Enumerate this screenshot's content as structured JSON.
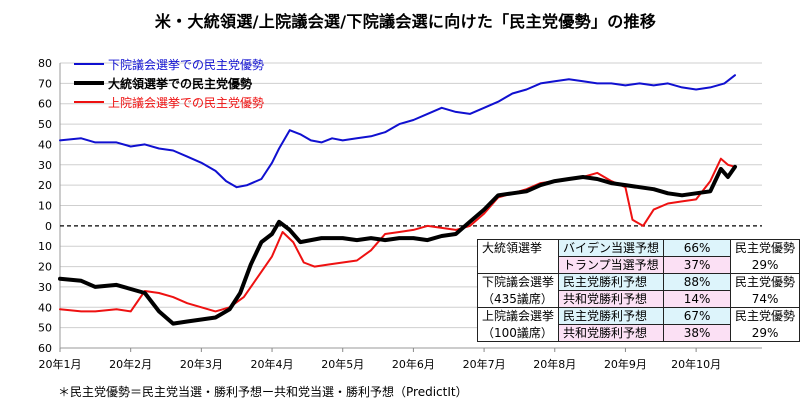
{
  "title": "米・大統領選/上院議会選/下院議会選に向けた「民主党優勢」の推移",
  "footnote": "＊民主党優勢＝民主党当選・勝利予想ー共和党当選・勝利予想（PredictIt）",
  "colors": {
    "house": "#1010d0",
    "president": "#000000",
    "senate": "#ee1111",
    "grid": "#cfcfcf"
  },
  "chart_data": {
    "type": "line",
    "title": "米・大統領選/上院議会選/下院議会選に向けた「民主党優勢」の推移",
    "xlabel": "",
    "ylabel": "",
    "x_tick_labels": [
      "20年1月",
      "20年2月",
      "20年3月",
      "20年4月",
      "20年5月",
      "20年6月",
      "20年7月",
      "20年8月",
      "20年9月",
      "20年10月"
    ],
    "y_tick_labels": [
      "80",
      "70",
      "60",
      "50",
      "40",
      "30",
      "20",
      "10",
      "0",
      "10",
      "20",
      "30",
      "40",
      "50",
      "60"
    ],
    "y_ticks": [
      80,
      70,
      60,
      50,
      40,
      30,
      20,
      10,
      0,
      -10,
      -20,
      -30,
      -40,
      -50,
      -60
    ],
    "ylim": [
      -60,
      80
    ],
    "x_unit": "months since 20年1月",
    "xlim": [
      0,
      9.55
    ],
    "grid": true,
    "legend_position": "top-left",
    "series": [
      {
        "name": "下院議会選挙での民主党優勢",
        "key": "house",
        "points": [
          [
            0,
            42
          ],
          [
            0.3,
            43
          ],
          [
            0.5,
            41
          ],
          [
            0.8,
            41
          ],
          [
            1.0,
            39
          ],
          [
            1.2,
            40
          ],
          [
            1.4,
            38
          ],
          [
            1.6,
            37
          ],
          [
            1.8,
            34
          ],
          [
            2.0,
            31
          ],
          [
            2.2,
            27
          ],
          [
            2.35,
            22
          ],
          [
            2.5,
            19
          ],
          [
            2.65,
            20
          ],
          [
            2.85,
            23
          ],
          [
            3.0,
            31
          ],
          [
            3.1,
            38
          ],
          [
            3.25,
            47
          ],
          [
            3.4,
            45
          ],
          [
            3.55,
            42
          ],
          [
            3.7,
            41
          ],
          [
            3.85,
            43
          ],
          [
            4.0,
            42
          ],
          [
            4.2,
            43
          ],
          [
            4.4,
            44
          ],
          [
            4.6,
            46
          ],
          [
            4.8,
            50
          ],
          [
            5.0,
            52
          ],
          [
            5.2,
            55
          ],
          [
            5.4,
            58
          ],
          [
            5.6,
            56
          ],
          [
            5.8,
            55
          ],
          [
            6.0,
            58
          ],
          [
            6.2,
            61
          ],
          [
            6.4,
            65
          ],
          [
            6.6,
            67
          ],
          [
            6.8,
            70
          ],
          [
            7.0,
            71
          ],
          [
            7.2,
            72
          ],
          [
            7.4,
            71
          ],
          [
            7.6,
            70
          ],
          [
            7.8,
            70
          ],
          [
            8.0,
            69
          ],
          [
            8.2,
            70
          ],
          [
            8.4,
            69
          ],
          [
            8.6,
            70
          ],
          [
            8.8,
            68
          ],
          [
            9.0,
            67
          ],
          [
            9.2,
            68
          ],
          [
            9.4,
            70
          ],
          [
            9.55,
            74
          ]
        ]
      },
      {
        "name": "大統領選挙での民主党優勢",
        "key": "president",
        "points": [
          [
            0,
            -26
          ],
          [
            0.3,
            -27
          ],
          [
            0.5,
            -30
          ],
          [
            0.8,
            -29
          ],
          [
            1.0,
            -31
          ],
          [
            1.2,
            -33
          ],
          [
            1.4,
            -42
          ],
          [
            1.6,
            -48
          ],
          [
            1.8,
            -47
          ],
          [
            2.0,
            -46
          ],
          [
            2.2,
            -45
          ],
          [
            2.4,
            -41
          ],
          [
            2.55,
            -33
          ],
          [
            2.7,
            -19
          ],
          [
            2.85,
            -8
          ],
          [
            3.0,
            -4
          ],
          [
            3.1,
            2
          ],
          [
            3.25,
            -2
          ],
          [
            3.4,
            -8
          ],
          [
            3.55,
            -7
          ],
          [
            3.7,
            -6
          ],
          [
            3.85,
            -6
          ],
          [
            4.0,
            -6
          ],
          [
            4.2,
            -7
          ],
          [
            4.4,
            -6
          ],
          [
            4.6,
            -7
          ],
          [
            4.8,
            -6
          ],
          [
            5.0,
            -6
          ],
          [
            5.2,
            -7
          ],
          [
            5.4,
            -5
          ],
          [
            5.6,
            -4
          ],
          [
            5.8,
            2
          ],
          [
            6.0,
            8
          ],
          [
            6.2,
            15
          ],
          [
            6.4,
            16
          ],
          [
            6.6,
            17
          ],
          [
            6.8,
            20
          ],
          [
            7.0,
            22
          ],
          [
            7.2,
            23
          ],
          [
            7.4,
            24
          ],
          [
            7.6,
            23
          ],
          [
            7.8,
            21
          ],
          [
            8.0,
            20
          ],
          [
            8.2,
            19
          ],
          [
            8.4,
            18
          ],
          [
            8.6,
            16
          ],
          [
            8.8,
            15
          ],
          [
            9.0,
            16
          ],
          [
            9.2,
            17
          ],
          [
            9.35,
            28
          ],
          [
            9.45,
            24
          ],
          [
            9.55,
            29
          ]
        ]
      },
      {
        "name": "上院議会選挙での民主党優勢",
        "key": "senate",
        "points": [
          [
            0,
            -41
          ],
          [
            0.3,
            -42
          ],
          [
            0.5,
            -42
          ],
          [
            0.8,
            -41
          ],
          [
            1.0,
            -42
          ],
          [
            1.2,
            -32
          ],
          [
            1.4,
            -33
          ],
          [
            1.6,
            -35
          ],
          [
            1.8,
            -38
          ],
          [
            2.0,
            -40
          ],
          [
            2.2,
            -42
          ],
          [
            2.4,
            -40
          ],
          [
            2.6,
            -35
          ],
          [
            2.8,
            -25
          ],
          [
            3.0,
            -15
          ],
          [
            3.15,
            -3
          ],
          [
            3.3,
            -8
          ],
          [
            3.45,
            -18
          ],
          [
            3.6,
            -20
          ],
          [
            3.8,
            -19
          ],
          [
            4.0,
            -18
          ],
          [
            4.2,
            -17
          ],
          [
            4.4,
            -12
          ],
          [
            4.6,
            -4
          ],
          [
            4.8,
            -3
          ],
          [
            5.0,
            -2
          ],
          [
            5.2,
            0
          ],
          [
            5.4,
            -1
          ],
          [
            5.6,
            -2
          ],
          [
            5.8,
            0
          ],
          [
            6.0,
            6
          ],
          [
            6.2,
            14
          ],
          [
            6.4,
            16
          ],
          [
            6.6,
            18
          ],
          [
            6.8,
            21
          ],
          [
            7.0,
            22
          ],
          [
            7.2,
            23
          ],
          [
            7.4,
            24
          ],
          [
            7.6,
            26
          ],
          [
            7.8,
            22
          ],
          [
            8.0,
            19
          ],
          [
            8.1,
            3
          ],
          [
            8.25,
            0
          ],
          [
            8.4,
            8
          ],
          [
            8.6,
            11
          ],
          [
            8.8,
            12
          ],
          [
            9.0,
            13
          ],
          [
            9.2,
            22
          ],
          [
            9.35,
            33
          ],
          [
            9.45,
            30
          ],
          [
            9.55,
            29
          ]
        ]
      }
    ]
  },
  "table": {
    "rows": [
      {
        "race": "大統領選挙",
        "race_sub": "",
        "items": [
          {
            "label": "バイデン当選予想",
            "value": "66%"
          },
          {
            "label": "トランプ当選予想",
            "value": "37%"
          }
        ],
        "summary_label": "民主党優勢",
        "summary_value": "29%"
      },
      {
        "race": "下院議会選挙",
        "race_sub": "（435議席）",
        "items": [
          {
            "label": "民主党勝利予想",
            "value": "88%"
          },
          {
            "label": "共和党勝利予想",
            "value": "14%"
          }
        ],
        "summary_label": "民主党優勢",
        "summary_value": "74%"
      },
      {
        "race": "上院議会選挙",
        "race_sub": "（100議席）",
        "items": [
          {
            "label": "民主党勝利予想",
            "value": "67%"
          },
          {
            "label": "共和党勝利予想",
            "value": "38%"
          }
        ],
        "summary_label": "民主党優勢",
        "summary_value": "29%"
      }
    ]
  }
}
